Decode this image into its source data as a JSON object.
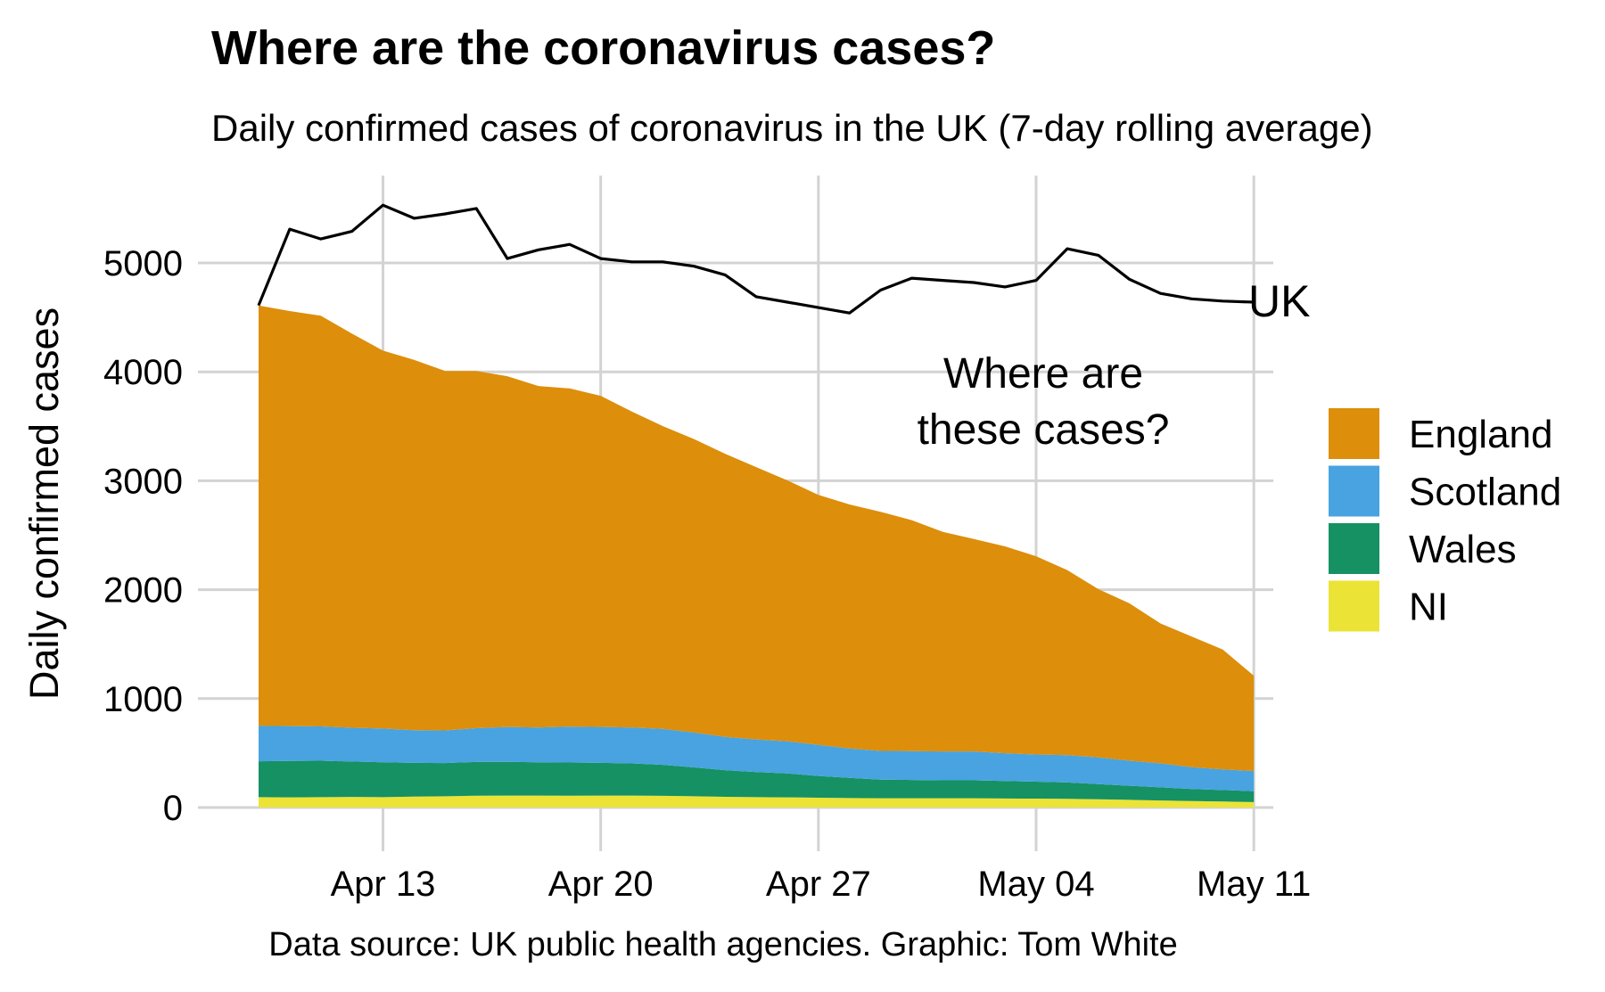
{
  "chart_data": {
    "type": "area",
    "title": "Where are the coronavirus cases?",
    "subtitle": "Daily confirmed cases of coronavirus in the UK (7-day rolling average)",
    "ylabel": "Daily confirmed cases",
    "xlabel": "",
    "caption": "Data source: UK public health agencies. Graphic: Tom White",
    "ylim": [
      0,
      5650
    ],
    "yticks": [
      0,
      1000,
      2000,
      3000,
      4000,
      5000
    ],
    "xticks": [
      "Apr 13",
      "Apr 20",
      "Apr 27",
      "May 04",
      "May 11"
    ],
    "x_start": "Apr 09",
    "x": [
      "Apr 09",
      "Apr 10",
      "Apr 11",
      "Apr 12",
      "Apr 13",
      "Apr 14",
      "Apr 15",
      "Apr 16",
      "Apr 17",
      "Apr 18",
      "Apr 19",
      "Apr 20",
      "Apr 21",
      "Apr 22",
      "Apr 23",
      "Apr 24",
      "Apr 25",
      "Apr 26",
      "Apr 27",
      "Apr 28",
      "Apr 29",
      "Apr 30",
      "May 01",
      "May 02",
      "May 03",
      "May 04",
      "May 05",
      "May 06",
      "May 07",
      "May 08",
      "May 09",
      "May 10",
      "May 11"
    ],
    "series": [
      {
        "name": "NI",
        "color": "#ece337",
        "values": [
          95,
          93,
          95,
          97,
          95,
          100,
          103,
          108,
          110,
          110,
          108,
          110,
          110,
          107,
          103,
          98,
          95,
          93,
          90,
          87,
          85,
          85,
          85,
          85,
          83,
          82,
          80,
          75,
          70,
          65,
          60,
          55,
          50
        ]
      },
      {
        "name": "Wales",
        "color": "#159163",
        "values": [
          330,
          335,
          335,
          325,
          320,
          310,
          305,
          310,
          310,
          305,
          305,
          300,
          295,
          285,
          265,
          245,
          230,
          220,
          200,
          185,
          170,
          168,
          165,
          165,
          160,
          155,
          150,
          140,
          130,
          120,
          110,
          105,
          100
        ]
      },
      {
        "name": "Scotland",
        "color": "#48a3e0",
        "values": [
          325,
          320,
          315,
          310,
          310,
          300,
          300,
          310,
          320,
          320,
          330,
          330,
          330,
          330,
          320,
          305,
          300,
          295,
          285,
          270,
          265,
          265,
          265,
          265,
          255,
          250,
          250,
          245,
          230,
          220,
          200,
          190,
          185
        ]
      },
      {
        "name": "England",
        "color": "#dd8e0b",
        "values": [
          3860,
          3810,
          3770,
          3620,
          3470,
          3400,
          3300,
          3280,
          3220,
          3135,
          3105,
          3040,
          2900,
          2780,
          2695,
          2600,
          2500,
          2395,
          2295,
          2240,
          2195,
          2120,
          2015,
          1950,
          1900,
          1820,
          1700,
          1545,
          1445,
          1285,
          1200,
          1100,
          875
        ]
      }
    ],
    "total": {
      "name": "UK",
      "color": "#000000",
      "values": [
        4610,
        5310,
        5220,
        5290,
        5530,
        5410,
        5450,
        5500,
        5040,
        5120,
        5170,
        5040,
        5010,
        5010,
        4970,
        4890,
        4690,
        4640,
        4590,
        4540,
        4750,
        4860,
        4840,
        4820,
        4780,
        4840,
        5130,
        5070,
        4850,
        4720,
        4670,
        4650,
        4640
      ]
    },
    "annotation": [
      "Where are",
      "these cases?"
    ],
    "legend": {
      "position": "right",
      "order": [
        "England",
        "Scotland",
        "Wales",
        "NI"
      ]
    }
  }
}
